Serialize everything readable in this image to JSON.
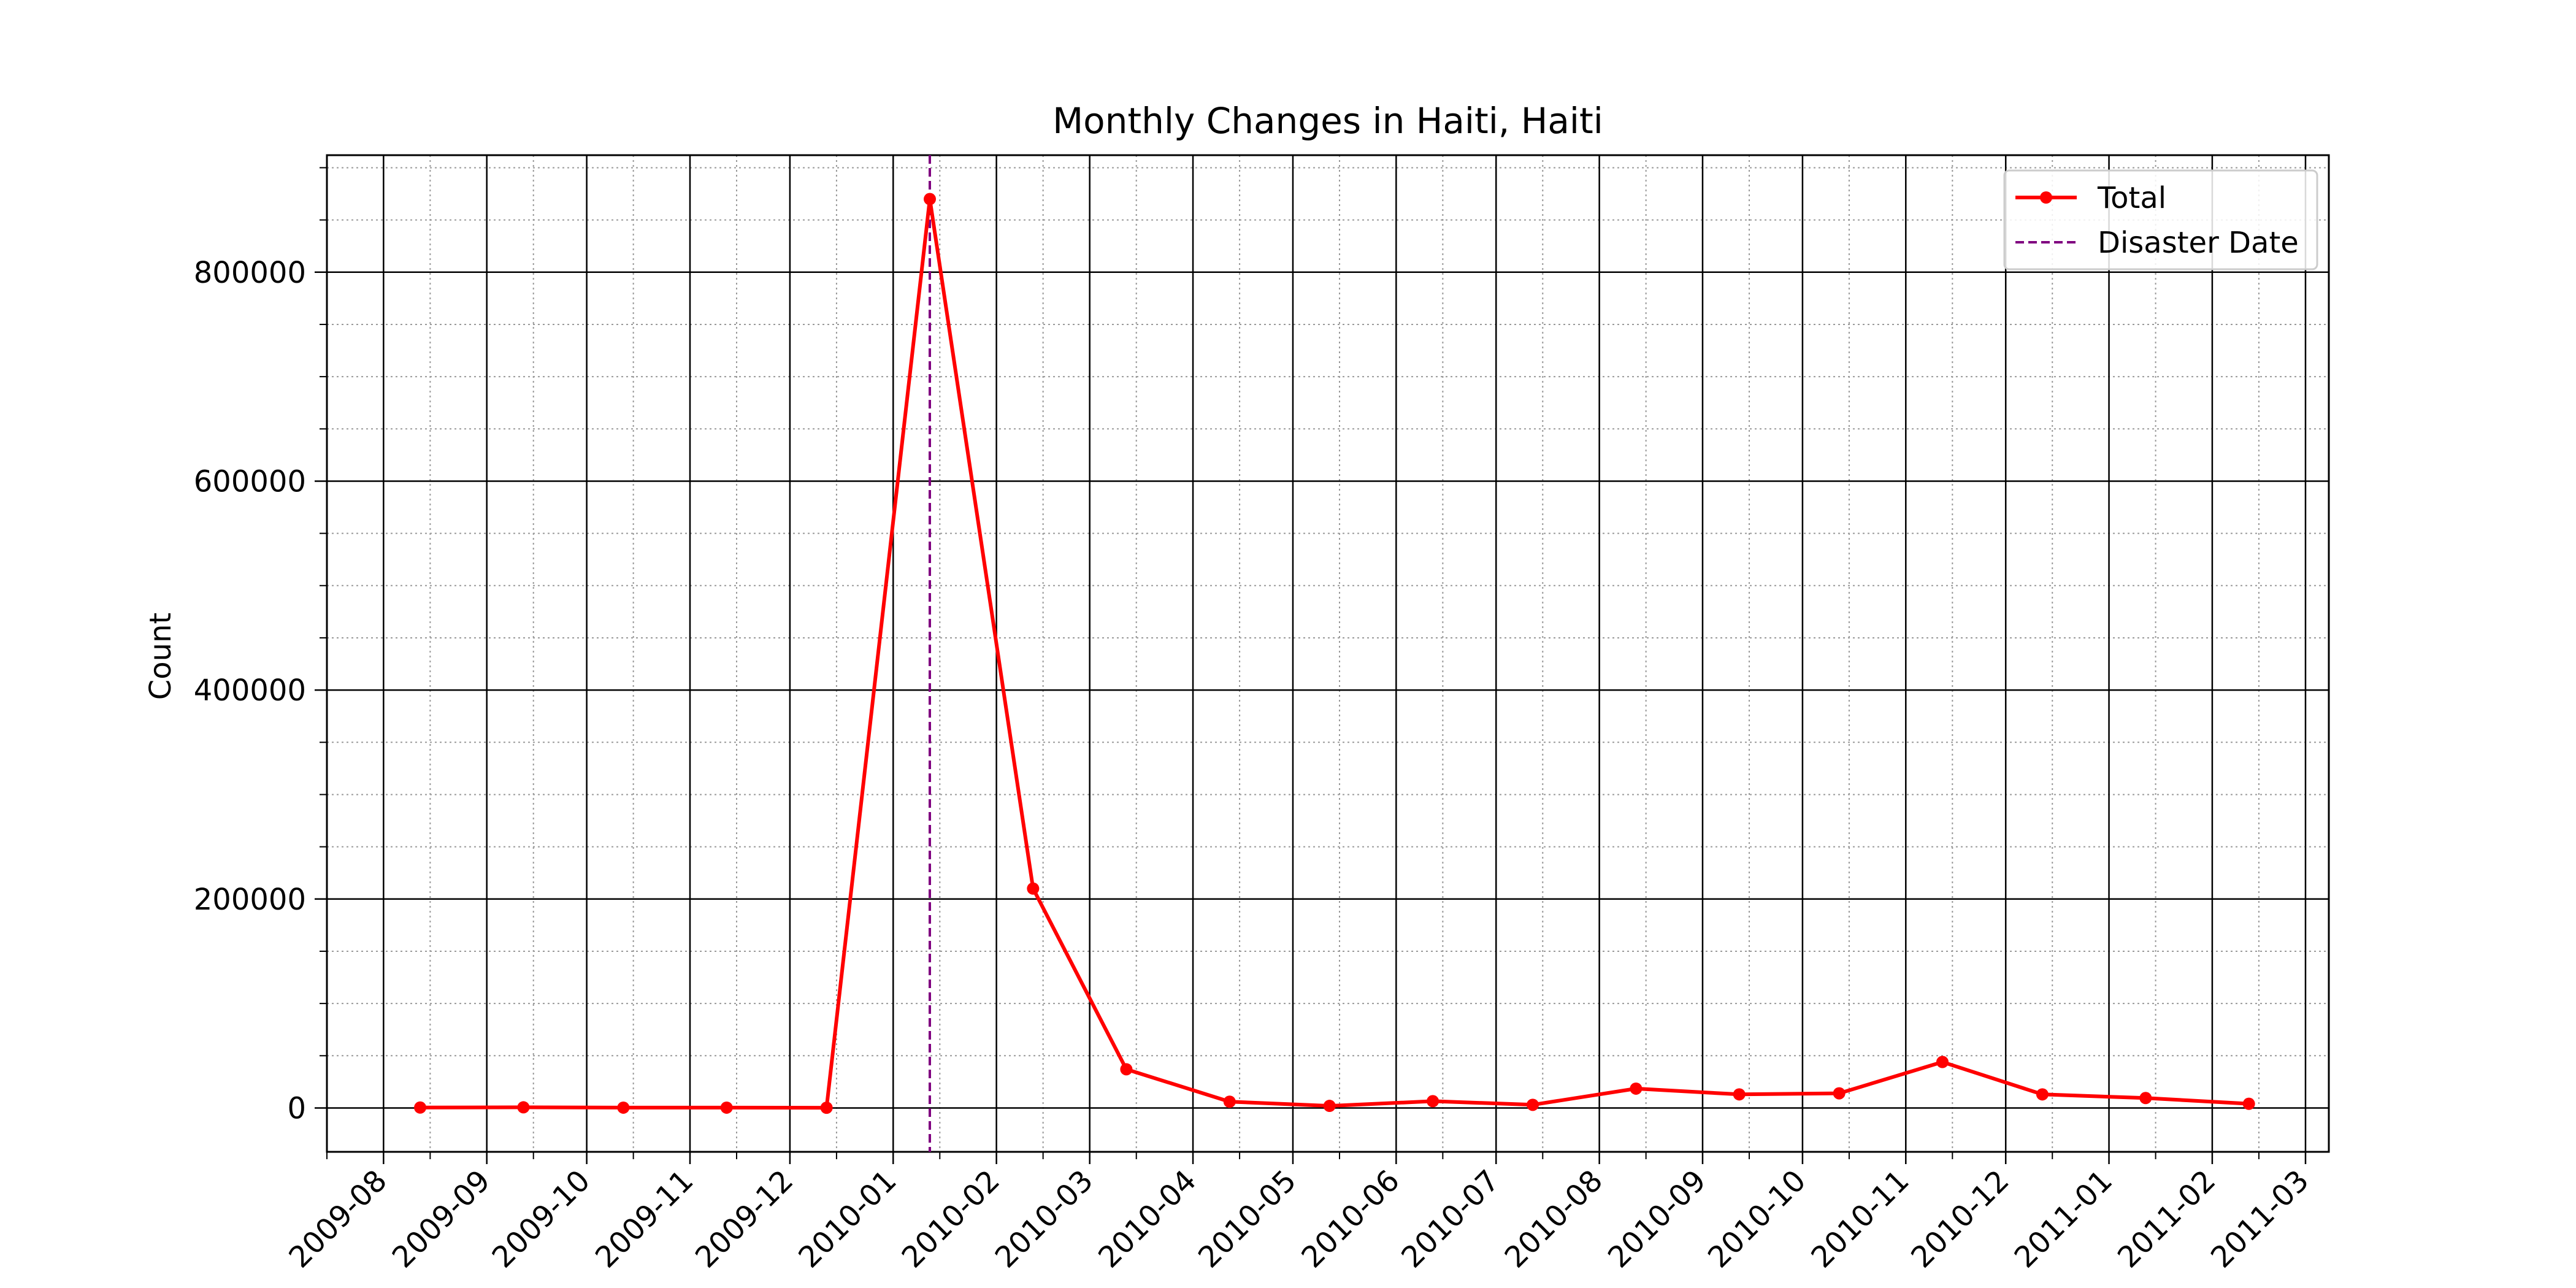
{
  "chart_data": {
    "type": "line",
    "title": "Monthly Changes in Haiti, Haiti",
    "xlabel": "",
    "ylabel": "Count",
    "x_axis_type": "date",
    "xlim": [
      "2009-07-15",
      "2011-03-08"
    ],
    "ylim": [
      -42000,
      912000
    ],
    "x_ticks": [
      "2009-08",
      "2009-09",
      "2009-10",
      "2009-11",
      "2009-12",
      "2010-01",
      "2010-02",
      "2010-03",
      "2010-04",
      "2010-05",
      "2010-06",
      "2010-07",
      "2010-08",
      "2010-09",
      "2010-10",
      "2010-11",
      "2010-12",
      "2011-01",
      "2011-02",
      "2011-03"
    ],
    "y_ticks": [
      0,
      200000,
      400000,
      600000,
      800000
    ],
    "y_tick_labels": [
      "0",
      "200000",
      "400000",
      "600000",
      "800000"
    ],
    "grid": {
      "major": true,
      "minor": true
    },
    "legend": {
      "placement": "top-right",
      "entries": [
        {
          "label": "Total",
          "color": "#ff0000",
          "style": "solid-with-markers"
        },
        {
          "label": "Disaster Date",
          "color": "#800080",
          "style": "dashed"
        }
      ]
    },
    "series": [
      {
        "name": "Total",
        "color": "#ff0000",
        "points": [
          {
            "x": "2009-08-12",
            "y": 400
          },
          {
            "x": "2009-09-12",
            "y": 600
          },
          {
            "x": "2009-10-12",
            "y": 300
          },
          {
            "x": "2009-11-12",
            "y": 300
          },
          {
            "x": "2009-12-12",
            "y": 200
          },
          {
            "x": "2010-01-12",
            "y": 870000
          },
          {
            "x": "2010-02-12",
            "y": 210000
          },
          {
            "x": "2010-03-12",
            "y": 37000
          },
          {
            "x": "2010-04-12",
            "y": 6000
          },
          {
            "x": "2010-05-12",
            "y": 2000
          },
          {
            "x": "2010-06-12",
            "y": 6500
          },
          {
            "x": "2010-07-12",
            "y": 3000
          },
          {
            "x": "2010-08-12",
            "y": 18500
          },
          {
            "x": "2010-09-12",
            "y": 13000
          },
          {
            "x": "2010-10-12",
            "y": 14000
          },
          {
            "x": "2010-11-12",
            "y": 44000
          },
          {
            "x": "2010-12-12",
            "y": 13000
          },
          {
            "x": "2011-01-12",
            "y": 9500
          },
          {
            "x": "2011-02-12",
            "y": 4000
          }
        ]
      }
    ],
    "annotations": [
      {
        "type": "vline",
        "x": "2010-01-12",
        "label": "Disaster Date",
        "color": "#800080"
      }
    ]
  }
}
